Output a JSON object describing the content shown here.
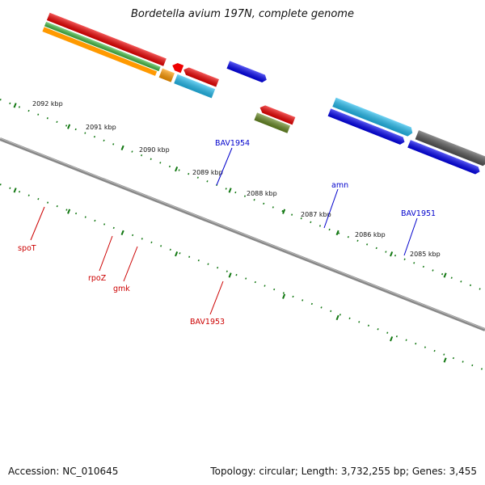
{
  "title": "Bordetella avium 197N, complete genome",
  "footer": {
    "accession": "Accession: NC_010645",
    "summary": "Topology: circular; Length: 3,732,255 bp; Genes: 3,455"
  },
  "ticks": [
    "2092 kbp",
    "2091 kbp",
    "2090 kbp",
    "2089 kbp",
    "2088 kbp",
    "2087 kbp",
    "2086 kbp",
    "2085 kbp"
  ],
  "gene_labels": [
    {
      "id": "BAV1954",
      "text": "BAV1954",
      "color": "#0000cc"
    },
    {
      "id": "amn",
      "text": "amn",
      "color": "#0000cc"
    },
    {
      "id": "BAV1951",
      "text": "BAV1951",
      "color": "#0000cc"
    },
    {
      "id": "spoT",
      "text": "spoT",
      "color": "#cc0000"
    },
    {
      "id": "rpoZ",
      "text": "rpoZ",
      "color": "#cc0000"
    },
    {
      "id": "gmk",
      "text": "gmk",
      "color": "#cc0000"
    },
    {
      "id": "BAV1953",
      "text": "BAV1953",
      "color": "#cc0000"
    }
  ],
  "colors": {
    "forward_gene": "#0000ee",
    "reverse_gene": "#ee0000",
    "rna_cyan": "#22bbee",
    "cog_green": "#44bb44",
    "cog_orange": "#ff9900",
    "cog_olive": "#668822",
    "cog_gray": "#555555",
    "backbone": "#888888",
    "tick_green": "#117711"
  }
}
